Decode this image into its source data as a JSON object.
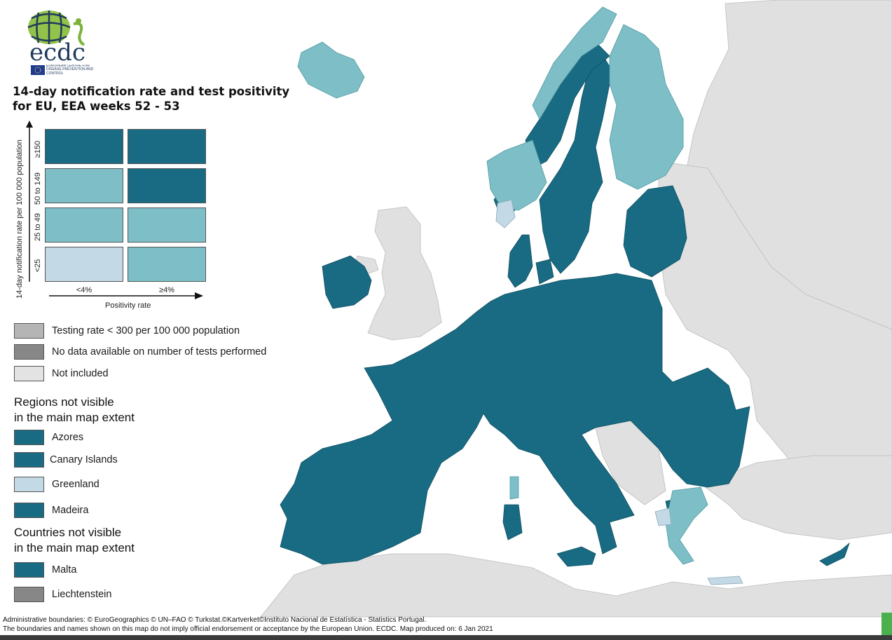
{
  "header": {
    "logo_text": "ecdc",
    "logo_subtext": "EUROPEAN CENTRE FOR DISEASE PREVENTION AND CONTROL",
    "title_line1": "14-day notification rate and test positivity",
    "title_line2": "for EU, EEA weeks 52 - 53"
  },
  "matrix": {
    "ylabel": "14-day notification rate per 100 000 population",
    "xlabel": "Positivity rate",
    "row_labels": [
      "≥150",
      "50 to 149",
      "25 to 49",
      "<25"
    ],
    "col_labels": [
      "<4%",
      "≥4%"
    ],
    "cells": [
      [
        "#186b82",
        "#186b82"
      ],
      [
        "#7ebfc7",
        "#186b82"
      ],
      [
        "#7ebfc7",
        "#7ebfc7"
      ],
      [
        "#c3d9e6",
        "#7ebfc7"
      ]
    ]
  },
  "legend": {
    "items": [
      {
        "label": "Testing rate < 300 per 100 000 population",
        "color": "#b5b5b5"
      },
      {
        "label": "No data available on number of tests performed",
        "color": "#878787"
      },
      {
        "label": "Not included",
        "color": "#e3e3e3"
      }
    ]
  },
  "regions": {
    "heading_line1": "Regions not visible",
    "heading_line2": "in the main map extent",
    "items": [
      {
        "label": "Azores",
        "color": "#186b82"
      },
      {
        "label": "Canary Islands",
        "color": "#186b82"
      },
      {
        "label": "Greenland",
        "color": "#c3d9e6"
      },
      {
        "label": "Madeira",
        "color": "#186b82"
      }
    ]
  },
  "countries": {
    "heading_line1": "Countries not visible",
    "heading_line2": "in the main map extent",
    "items": [
      {
        "label": "Malta",
        "color": "#186b82"
      },
      {
        "label": "Liechtenstein",
        "color": "#878787"
      }
    ]
  },
  "footer": {
    "line1": "Administrative boundaries: © EuroGeographics © UN–FAO © Turkstat.©Kartverket©Instituto Nacional de Estatística - Statistics Portugal.",
    "line2": "The boundaries and names shown on this map do not imply official endorsement or acceptance by the European Union. ECDC. Map produced on: 6 Jan 2021"
  },
  "colors": {
    "dark_teal": "#186b82",
    "light_teal": "#7ebfc7",
    "pale_blue": "#c3d9e6",
    "not_included": "#e3e3e3",
    "outside_land": "#dcdcdc",
    "sea": "#ffffff"
  }
}
